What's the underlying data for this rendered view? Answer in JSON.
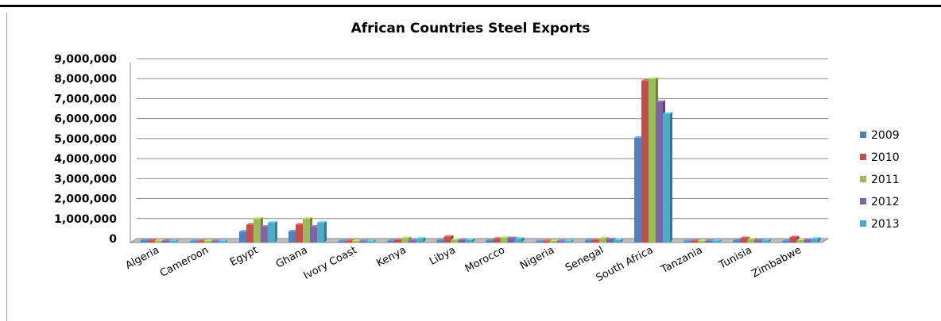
{
  "chart_data": {
    "type": "bar",
    "title": "African Countries Steel Exports",
    "xlabel": "",
    "ylabel": "",
    "ylim": [
      0,
      9000000
    ],
    "yticks": [
      "0",
      "1,000,000",
      "2,000,000",
      "3,000,000",
      "4,000,000",
      "5,000,000",
      "6,000,000",
      "7,000,000",
      "8,000,000",
      "9,000,000"
    ],
    "grid": true,
    "legend_position": "right",
    "categories": [
      "Algeria",
      "Cameroon",
      "Egypt",
      "Ghana",
      "Ivory Coast",
      "Kenya",
      "Libya",
      "Morocco",
      "Nigeria",
      "Senegal",
      "South Africa",
      "Tanzania",
      "Tunisia",
      "Zimbabwe"
    ],
    "series": [
      {
        "name": "2009",
        "color": "#4F81BD",
        "values": [
          70000,
          20000,
          500000,
          520000,
          30000,
          50000,
          70000,
          70000,
          20000,
          60000,
          5200000,
          30000,
          60000,
          40000
        ]
      },
      {
        "name": "2010",
        "color": "#C0504D",
        "values": [
          60000,
          30000,
          850000,
          850000,
          40000,
          80000,
          250000,
          150000,
          30000,
          80000,
          8050000,
          40000,
          180000,
          220000
        ]
      },
      {
        "name": "2011",
        "color": "#9BBB59",
        "values": [
          50000,
          40000,
          1150000,
          1150000,
          40000,
          180000,
          100000,
          200000,
          40000,
          170000,
          8150000,
          40000,
          120000,
          80000
        ]
      },
      {
        "name": "2012",
        "color": "#8064A2",
        "values": [
          40000,
          30000,
          750000,
          750000,
          30000,
          60000,
          90000,
          180000,
          30000,
          120000,
          7000000,
          40000,
          60000,
          100000
        ]
      },
      {
        "name": "2013",
        "color": "#4BACC6",
        "values": [
          40000,
          30000,
          950000,
          950000,
          30000,
          150000,
          90000,
          150000,
          30000,
          90000,
          6400000,
          40000,
          60000,
          150000
        ]
      }
    ]
  }
}
